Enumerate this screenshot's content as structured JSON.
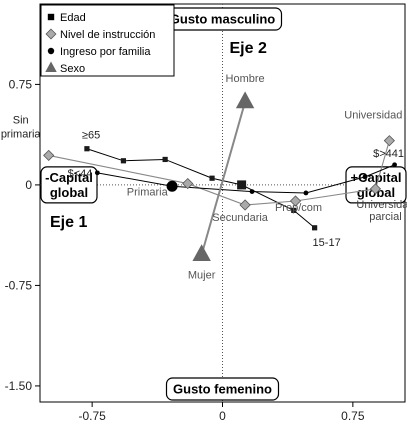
{
  "chart_data": {
    "type": "scatter",
    "xlim": [
      -1.05,
      1.05
    ],
    "ylim": [
      -1.62,
      1.35
    ],
    "x_ticks": [
      -0.75,
      0,
      0.75
    ],
    "y_ticks": [
      0.75,
      0,
      -0.75,
      -1.5
    ],
    "x_tick_labels": [
      "-0.75",
      "0",
      "0.75"
    ],
    "y_tick_labels": [
      "0.75",
      "0",
      "-0.75",
      "-1.50"
    ],
    "grid": false,
    "legend_position": "top-left",
    "legend": [
      {
        "label": "Edad",
        "marker": "square"
      },
      {
        "label": "Nivel de instrucción",
        "marker": "diamond"
      },
      {
        "label": "Ingreso por familia",
        "marker": "circle"
      },
      {
        "label": "Sexo",
        "marker": "triangle"
      }
    ],
    "annotations": {
      "axis1_label": "Eje 1",
      "axis2_label": "Eje 2",
      "top_box": "Gusto masculino",
      "bottom_box": "Gusto femenino",
      "left_box_line1": "-Capital",
      "left_box_line2": "global",
      "right_box_line1": "+Capital",
      "right_box_line2": "global"
    },
    "series": [
      {
        "name": "Edad",
        "marker": "square",
        "points": [
          {
            "x": -0.78,
            "y": 0.27,
            "label": "≥65"
          },
          {
            "x": -0.57,
            "y": 0.18,
            "label": ""
          },
          {
            "x": -0.33,
            "y": 0.19,
            "label": ""
          },
          {
            "x": -0.06,
            "y": 0.05,
            "label": ""
          },
          {
            "x": 0.11,
            "y": 0.0,
            "label": ""
          },
          {
            "x": 0.41,
            "y": -0.19,
            "label": ""
          },
          {
            "x": 0.53,
            "y": -0.32,
            "label": "15-17"
          }
        ]
      },
      {
        "name": "Nivel de instrucción",
        "marker": "diamond",
        "points": [
          {
            "x": -1.0,
            "y": 0.22,
            "label": "Sin primaria"
          },
          {
            "x": -0.2,
            "y": 0.01,
            "label": "Primaria"
          },
          {
            "x": 0.13,
            "y": -0.15,
            "label": "Secundaria"
          },
          {
            "x": 0.42,
            "y": -0.12,
            "label": "Prep/com"
          },
          {
            "x": 0.88,
            "y": -0.03,
            "label": "Universidad parcial"
          },
          {
            "x": 0.96,
            "y": 0.33,
            "label": "Universidad"
          }
        ]
      },
      {
        "name": "Ingreso por familia",
        "marker": "circle",
        "points": [
          {
            "x": -0.72,
            "y": 0.09,
            "label": "$<44"
          },
          {
            "x": -0.29,
            "y": -0.01,
            "label": ""
          },
          {
            "x": 0.17,
            "y": -0.05,
            "label": ""
          },
          {
            "x": 0.48,
            "y": -0.06,
            "label": ""
          },
          {
            "x": 0.82,
            "y": 0.06,
            "label": ""
          },
          {
            "x": 0.99,
            "y": 0.15,
            "label": "$>441"
          }
        ]
      },
      {
        "name": "Sexo",
        "marker": "triangle",
        "points": [
          {
            "x": 0.13,
            "y": 0.62,
            "label": "Hombre"
          },
          {
            "x": -0.12,
            "y": -0.52,
            "label": "Mujer"
          }
        ]
      }
    ]
  }
}
